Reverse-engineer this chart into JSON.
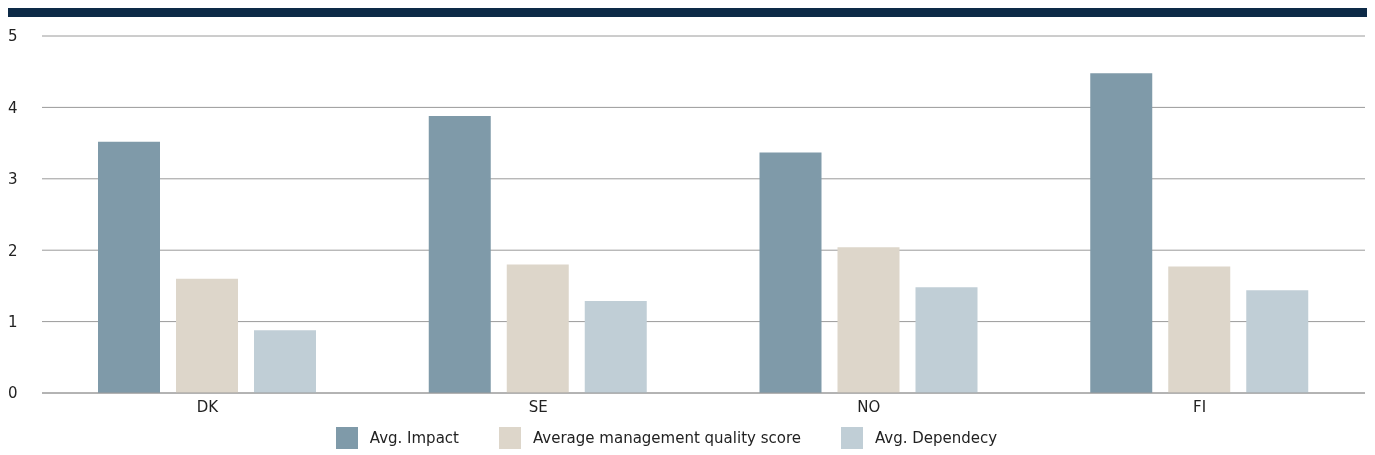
{
  "chart_data": {
    "type": "bar",
    "categories": [
      "DK",
      "SE",
      "NO",
      "FI"
    ],
    "series": [
      {
        "name": "Avg. Impact",
        "color": "#7f9aa9",
        "values": [
          3.52,
          3.88,
          3.37,
          4.48
        ]
      },
      {
        "name": "Average management quality score",
        "color": "#ddd6ca",
        "values": [
          1.6,
          1.8,
          2.04,
          1.77
        ]
      },
      {
        "name": "Avg. Dependecy",
        "color": "#c0ced6",
        "values": [
          0.88,
          1.29,
          1.48,
          1.44
        ]
      }
    ],
    "ylim": [
      0,
      5
    ],
    "yticks": [
      0,
      1,
      2,
      3,
      4,
      5
    ],
    "grid": "y",
    "legend": "bottom"
  }
}
